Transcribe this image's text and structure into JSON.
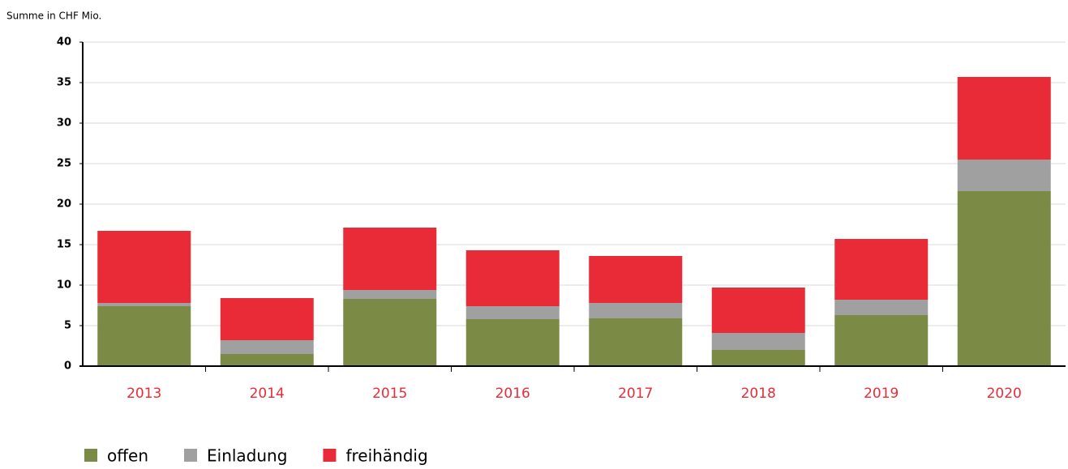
{
  "chart_data": {
    "type": "stacked_bar",
    "ylabel": "Summe in CHF Mio.",
    "categories": [
      "2013",
      "2014",
      "2015",
      "2016",
      "2017",
      "2018",
      "2019",
      "2020"
    ],
    "series": [
      {
        "name": "offen",
        "color": "#7b8b45",
        "values": [
          7.4,
          1.5,
          8.3,
          5.8,
          5.9,
          2.0,
          6.3,
          21.6
        ]
      },
      {
        "name": "Einladung",
        "color": "#a0a0a0",
        "values": [
          0.4,
          1.7,
          1.1,
          1.6,
          1.9,
          2.1,
          1.9,
          3.9
        ]
      },
      {
        "name": "freihändig",
        "color": "#e92b37",
        "values": [
          8.9,
          5.2,
          7.7,
          6.9,
          5.8,
          5.6,
          7.5,
          10.2
        ]
      }
    ],
    "ylim": [
      0,
      40
    ],
    "yticks": [
      0,
      5,
      10,
      15,
      20,
      25,
      30,
      35,
      40
    ],
    "grid": true,
    "legend": "bottom"
  }
}
